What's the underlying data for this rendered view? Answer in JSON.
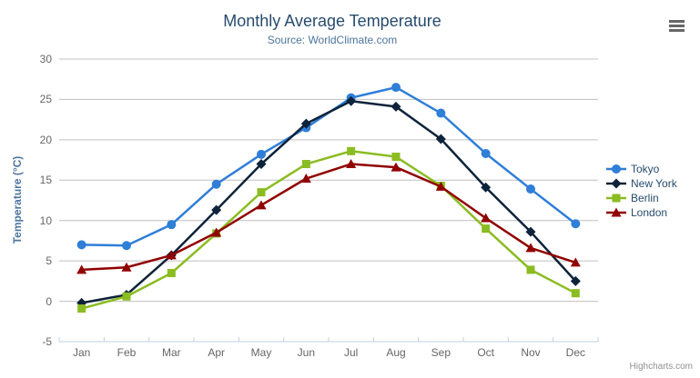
{
  "chart_data": {
    "type": "line",
    "title": "Monthly Average Temperature",
    "subtitle": "Source: WorldClimate.com",
    "categories": [
      "Jan",
      "Feb",
      "Mar",
      "Apr",
      "May",
      "Jun",
      "Jul",
      "Aug",
      "Sep",
      "Oct",
      "Nov",
      "Dec"
    ],
    "xlabel": "",
    "ylabel": "Temperature (°C)",
    "ylim": [
      -5,
      30
    ],
    "ytick_interval": 5,
    "grid": true,
    "legend_position": "right",
    "series": [
      {
        "name": "Tokyo",
        "color": "#2f7ed8",
        "marker": "circle",
        "values": [
          7.0,
          6.9,
          9.5,
          14.5,
          18.2,
          21.5,
          25.2,
          26.5,
          23.3,
          18.3,
          13.9,
          9.6
        ]
      },
      {
        "name": "New York",
        "color": "#0d233a",
        "marker": "diamond",
        "values": [
          -0.2,
          0.8,
          5.7,
          11.3,
          17.0,
          22.0,
          24.8,
          24.1,
          20.1,
          14.1,
          8.6,
          2.5
        ]
      },
      {
        "name": "Berlin",
        "color": "#8bbc21",
        "marker": "square",
        "values": [
          -0.9,
          0.6,
          3.5,
          8.4,
          13.5,
          17.0,
          18.6,
          17.9,
          14.3,
          9.0,
          3.9,
          1.0
        ]
      },
      {
        "name": "London",
        "color": "#910000",
        "marker": "triangle",
        "values": [
          3.9,
          4.2,
          5.7,
          8.5,
          11.9,
          15.2,
          17.0,
          16.6,
          14.2,
          10.3,
          6.6,
          4.8
        ]
      }
    ]
  },
  "colors": {
    "title": "#274b6d",
    "subtitle": "#4d759e",
    "axis_label": "#666666",
    "grid_line": "#C0C0C0",
    "axis_line": "#C0D0E0",
    "credits": "#909090"
  },
  "credits": {
    "label": "Highcharts.com"
  }
}
